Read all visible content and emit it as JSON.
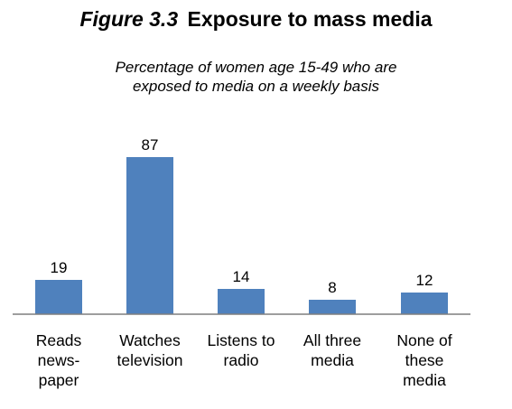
{
  "figure": {
    "number": "Figure 3.3",
    "name": "Exposure to mass media",
    "subtitle_lines": [
      "Percentage of women age 15-49 who are",
      "exposed to media on a weekly basis"
    ]
  },
  "chart_data": {
    "type": "bar",
    "title": "Exposure to mass media",
    "subtitle": "Percentage of women age 15-49 who are exposed to media on a weekly basis",
    "categories": [
      "Reads newspaper",
      "Watches television",
      "Listens to radio",
      "All three media",
      "None of these media"
    ],
    "category_label_lines": [
      [
        "Reads",
        "news-",
        "paper"
      ],
      [
        "Watches",
        "television"
      ],
      [
        "Listens to",
        "radio"
      ],
      [
        "All three",
        "media"
      ],
      [
        "None of",
        "these",
        "media"
      ]
    ],
    "values": [
      19,
      87,
      14,
      8,
      12
    ],
    "ylim": [
      0,
      100
    ],
    "bar_color": "#4f81bd",
    "data_labels": true,
    "grid": false,
    "legend": "none"
  }
}
